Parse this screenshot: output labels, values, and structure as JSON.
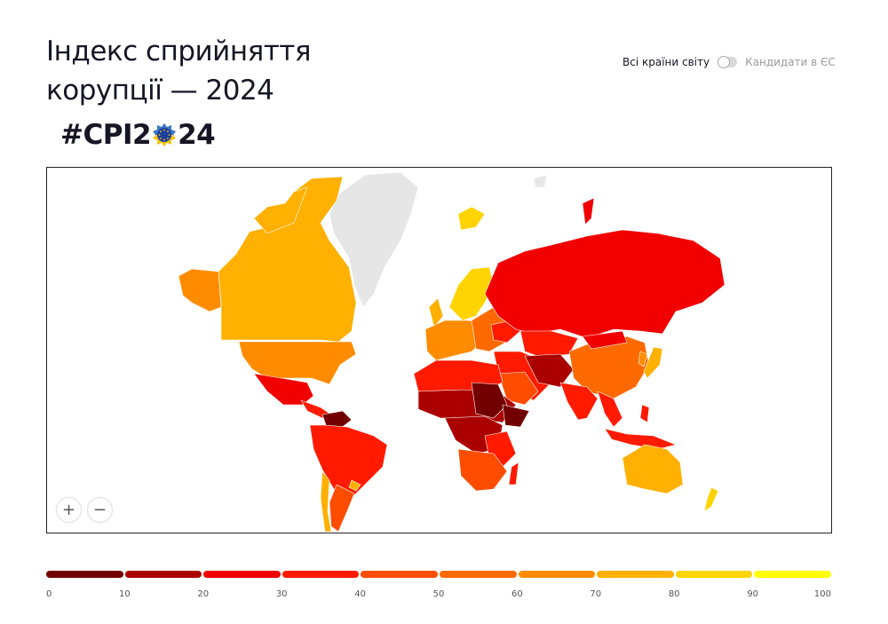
{
  "header": {
    "title": "Індекс сприйняття корупції — 2024",
    "hashtag_pre": "#CPI2",
    "hashtag_post": "24"
  },
  "toggle": {
    "option_all": "Всі країни світу",
    "option_eu": "Кандидати в ЄС",
    "state": "off"
  },
  "map": {
    "zoom_in": "+",
    "zoom_out": "−",
    "no_data_color": "#e6e6e6"
  },
  "legend": {
    "colors": [
      "#730000",
      "#ab0000",
      "#f20000",
      "#ff1a00",
      "#ff4d00",
      "#ff6a00",
      "#ff8c00",
      "#ffb000",
      "#ffd400",
      "#ffff00"
    ],
    "ticks": [
      "0",
      "10",
      "20",
      "30",
      "40",
      "50",
      "60",
      "70",
      "80",
      "90",
      "100"
    ]
  }
}
